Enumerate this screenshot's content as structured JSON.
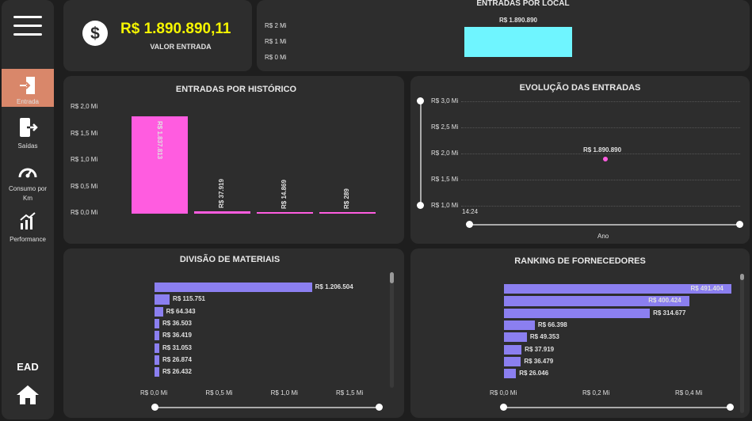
{
  "sidebar": {
    "items": [
      {
        "label": "Entrada",
        "icon": "entrance-icon",
        "active": true
      },
      {
        "label": "Saídas",
        "icon": "exit-icon"
      },
      {
        "label": "Consumo por Km",
        "icon": "speedometer-icon"
      },
      {
        "label": "Performance",
        "icon": "performance-chart-icon"
      }
    ],
    "footer_label": "EAD",
    "home_icon": "home-icon"
  },
  "kpi": {
    "value": "R$ 1.890.890,11",
    "label": "VALOR ENTRADA",
    "value_color": "#f5f500"
  },
  "entradas_local": {
    "title": "ENTRADAS POR LOCAL",
    "ticks": [
      "R$ 2 Mi",
      "R$ 1 Mi",
      "R$ 0 Mi"
    ],
    "bar_label": "R$ 1.890.890",
    "value": 1890890,
    "max": 2000000,
    "color": "#6ff5ff"
  },
  "historico": {
    "title": "ENTRADAS POR HISTÓRICO",
    "ticks": [
      "R$ 2,0 Mi",
      "R$ 1,5 Mi",
      "R$ 1,0 Mi",
      "R$ 0,5 Mi",
      "R$ 0,0 Mi"
    ],
    "bars": [
      {
        "label": "R$ 1.837.813",
        "value": 1837813
      },
      {
        "label": "R$ 37.919",
        "value": 37919
      },
      {
        "label": "R$ 14.869",
        "value": 14869
      },
      {
        "label": "R$ 289",
        "value": 289
      }
    ],
    "max": 2000000,
    "color": "#ff5ce0"
  },
  "evolucao": {
    "title": "EVOLUÇÃO DAS ENTRADAS",
    "ticks": [
      "R$ 3,0 Mi",
      "R$ 2,5 Mi",
      "R$ 2,0 Mi",
      "R$ 1,5 Mi",
      "R$ 1,0 Mi"
    ],
    "point_label": "R$ 1.890.890",
    "value": 1890890,
    "ymin": 1000000,
    "ymax": 3000000,
    "x_tick": "14:24",
    "x_label": "Ano",
    "point_color": "#ff5ce0"
  },
  "materiais": {
    "title": "DIVISÃO DE MATERIAIS",
    "bars": [
      {
        "label": "R$ 1.206.504",
        "value": 1206504
      },
      {
        "label": "R$ 115.751",
        "value": 115751
      },
      {
        "label": "R$ 64.343",
        "value": 64343
      },
      {
        "label": "R$ 36.503",
        "value": 36503
      },
      {
        "label": "R$ 36.419",
        "value": 36419
      },
      {
        "label": "R$ 31.053",
        "value": 31053
      },
      {
        "label": "R$ 26.874",
        "value": 26874
      },
      {
        "label": "R$ 26.432",
        "value": 26432
      }
    ],
    "x_ticks": [
      "R$ 0,0 Mi",
      "R$ 0,5 Mi",
      "R$ 1,0 Mi",
      "R$ 1,5 Mi"
    ],
    "xmax": 1500000,
    "color": "#8b7ff0"
  },
  "fornecedores": {
    "title": "RANKING DE FORNECEDORES",
    "bars": [
      {
        "label": "R$ 491.404",
        "value": 491404
      },
      {
        "label": "R$ 400.424",
        "value": 400424
      },
      {
        "label": "R$ 314.677",
        "value": 314677
      },
      {
        "label": "R$ 66.398",
        "value": 66398
      },
      {
        "label": "R$ 49.353",
        "value": 49353
      },
      {
        "label": "R$ 37.919",
        "value": 37919
      },
      {
        "label": "R$ 36.479",
        "value": 36479
      },
      {
        "label": "R$ 26.046",
        "value": 26046
      }
    ],
    "x_ticks": [
      "R$ 0,0 Mi",
      "R$ 0,2 Mi",
      "R$ 0,4 Mi"
    ],
    "xmax": 400000,
    "color": "#8b7ff0"
  }
}
